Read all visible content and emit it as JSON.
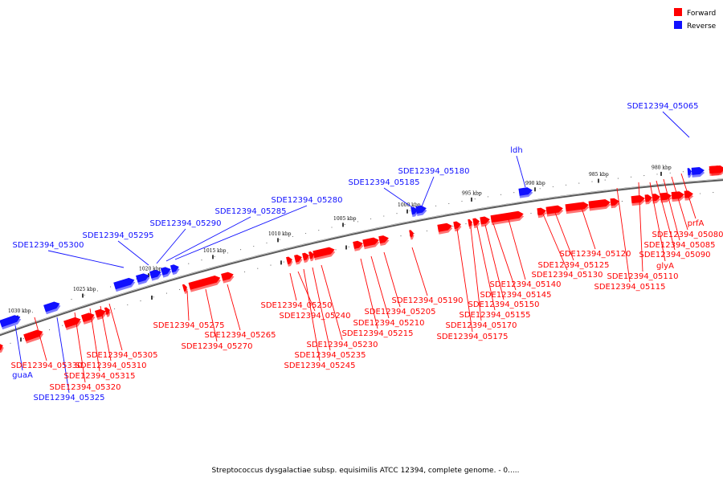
{
  "caption": "Streptococcus dysgalactiae subsp. equisimilis ATCC 12394, complete genome. - 0.....",
  "colors": {
    "forward": "#ff0000",
    "reverse": "#1010ff",
    "backbone": "#777777"
  },
  "legend": [
    {
      "label": "Forward",
      "strand": "forward"
    },
    {
      "label": "Reverse",
      "strand": "reverse"
    }
  ],
  "ticks": [
    "1030 kbp",
    "1025 kbp",
    "1020 kbp",
    "1015 kbp",
    "1010 kbp",
    "1005 kbp",
    "1000 kbp",
    "995 kbp",
    "990 kbp",
    "985 kbp",
    "980 kbp"
  ],
  "genes_reverse": [
    {
      "label": "SDE12394_05065"
    },
    {
      "label": "ldh"
    },
    {
      "label": "SDE12394_05180"
    },
    {
      "label": "SDE12394_05185"
    },
    {
      "label": "SDE12394_05280"
    },
    {
      "label": "SDE12394_05285"
    },
    {
      "label": "SDE12394_05290"
    },
    {
      "label": "SDE12394_05295"
    },
    {
      "label": "SDE12394_05300"
    },
    {
      "label": "guaA"
    },
    {
      "label": "SDE12394_05325"
    }
  ],
  "genes_forward": [
    {
      "label": "prfA"
    },
    {
      "label": "SDE12394_05080"
    },
    {
      "label": "SDE12394_05085"
    },
    {
      "label": "SDE12394_05090"
    },
    {
      "label": "glyA"
    },
    {
      "label": "SDE12394_05110"
    },
    {
      "label": "SDE12394_05115"
    },
    {
      "label": "SDE12394_05120"
    },
    {
      "label": "SDE12394_05125"
    },
    {
      "label": "SDE12394_05130"
    },
    {
      "label": "SDE12394_05140"
    },
    {
      "label": "SDE12394_05145"
    },
    {
      "label": "SDE12394_05150"
    },
    {
      "label": "SDE12394_05155"
    },
    {
      "label": "SDE12394_05170"
    },
    {
      "label": "SDE12394_05175"
    },
    {
      "label": "SDE12394_05190"
    },
    {
      "label": "SDE12394_05205"
    },
    {
      "label": "SDE12394_05210"
    },
    {
      "label": "SDE12394_05215"
    },
    {
      "label": "SDE12394_05230"
    },
    {
      "label": "SDE12394_05235"
    },
    {
      "label": "SDE12394_05245"
    },
    {
      "label": "SDE12394_05250"
    },
    {
      "label": "SDE12394_05240"
    },
    {
      "label": "SDE12394_05265"
    },
    {
      "label": "SDE12394_05270"
    },
    {
      "label": "SDE12394_05275"
    },
    {
      "label": "SDE12394_05305"
    },
    {
      "label": "SDE12394_05310"
    },
    {
      "label": "SDE12394_05315"
    },
    {
      "label": "SDE12394_05320"
    },
    {
      "label": "SDE12394_05330"
    }
  ]
}
